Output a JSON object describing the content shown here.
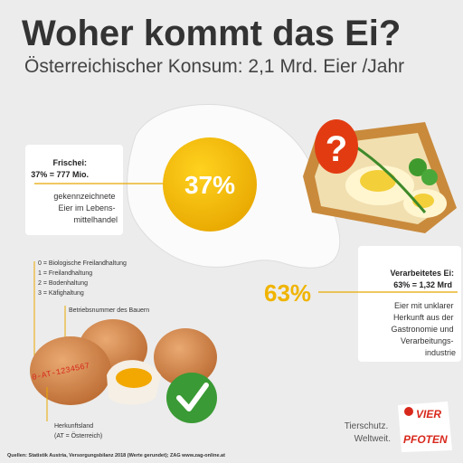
{
  "header": {
    "title": "Woher kommt das Ei?",
    "subtitle": "Österreichischer Konsum: 2,1 Mrd. Eier /Jahr"
  },
  "fresh": {
    "percent": "37%",
    "heading": "Frischei:",
    "detail": "37% = 777 Mio.",
    "description": [
      "gekennzeichnete",
      "Eier im Lebens-",
      "mittelhandel"
    ]
  },
  "processed": {
    "icon": "?",
    "percent": "63%",
    "heading": "Verarbeitetes Ei:",
    "detail": "63% = 1,32 Mrd",
    "description": [
      "Eier mit unklarer",
      "Herkunft aus der",
      "Gastronomie und",
      "Verarbeitungs-",
      "industrie"
    ]
  },
  "egg_code": {
    "legend": [
      "0 = Biologische Freilandhaltung",
      "1 = Freilandhaltung",
      "2 = Bodenhaltung",
      "3 = Käfighaltung"
    ],
    "farm_label": "Betriebsnummer des Bauern",
    "code": "0-AT-1234567",
    "country_label": [
      "Herkunftsland",
      "(AT = Österreich)"
    ]
  },
  "brand": {
    "logo": [
      "VIER",
      "PFOTEN"
    ],
    "tagline": [
      "Tierschutz.",
      "Weltweit."
    ]
  },
  "footer": {
    "source": "Quellen: Statistik Austria, Versorgungsbilanz 2018 (Werte gerundet); ZAG www.zag-online.at"
  }
}
